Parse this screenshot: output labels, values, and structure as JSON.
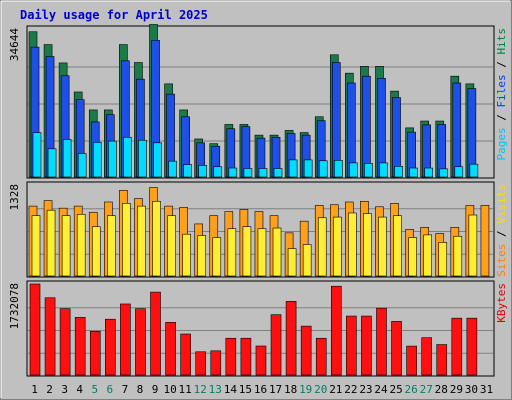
{
  "chart_data": {
    "type": "bar",
    "title": "Daily usage for April 2025",
    "categories": [
      "1",
      "2",
      "3",
      "4",
      "5",
      "6",
      "7",
      "8",
      "9",
      "10",
      "11",
      "12",
      "13",
      "14",
      "15",
      "16",
      "17",
      "18",
      "19",
      "20",
      "21",
      "22",
      "23",
      "24",
      "25",
      "26",
      "27",
      "28",
      "29",
      "30",
      "31"
    ],
    "weekend_days": [
      "5",
      "6",
      "12",
      "13",
      "19",
      "20",
      "26",
      "27"
    ],
    "panels": [
      {
        "name": "hits-files-pages",
        "ymax_label": "34644",
        "ymax": 34644,
        "side_label": [
          "Pages",
          "Files",
          "Hits"
        ],
        "side_label_colors": [
          "#00c0ff",
          "#0040ff",
          "#008040"
        ],
        "series": [
          {
            "name": "Hits",
            "color": "#1a7a4a",
            "values": [
              34000,
              31000,
              26700,
              19900,
              15700,
              15700,
              31000,
              26800,
              35700,
              21800,
              15700,
              8900,
              7800,
              12300,
              12300,
              9800,
              9800,
              10900,
              10400,
              14100,
              28600,
              24300,
              25900,
              25900,
              20100,
              11500,
              13100,
              13100,
              23600,
              21800,
              null
            ]
          },
          {
            "name": "Files",
            "color": "#1e4fe6",
            "values": [
              30400,
              28200,
              23700,
              18100,
              12900,
              14600,
              27200,
              22900,
              32000,
              19400,
              14100,
              8000,
              7200,
              11300,
              11800,
              9100,
              9300,
              10200,
              9800,
              13200,
              26800,
              22000,
              23600,
              23100,
              18600,
              10500,
              12200,
              12300,
              22000,
              20700,
              null
            ]
          },
          {
            "name": "Pages",
            "color": "#00dcff",
            "values": [
              10400,
              6600,
              8800,
              5500,
              8100,
              8400,
              9300,
              8600,
              8000,
              3700,
              2900,
              2700,
              2400,
              2100,
              2000,
              2000,
              2000,
              4000,
              4000,
              3800,
              3900,
              3300,
              3200,
              3300,
              2500,
              2100,
              2100,
              1900,
              2400,
              3000,
              null
            ]
          }
        ]
      },
      {
        "name": "visits-sites",
        "ymax_label": "1328",
        "ymax": 1328,
        "side_label": [
          "Sites",
          "Visits"
        ],
        "side_label_colors": [
          "#ff8000",
          "#ffd800"
        ],
        "series": [
          {
            "name": "Visits",
            "color": "#ff9f1a",
            "values": [
              1020,
              1100,
              990,
              1020,
              930,
              1080,
              1250,
              1130,
              1290,
              1020,
              1000,
              760,
              880,
              940,
              970,
              940,
              880,
              630,
              800,
              1030,
              1040,
              1080,
              1090,
              1010,
              1060,
              680,
              710,
              620,
              710,
              1030,
              1030
            ]
          },
          {
            "name": "Sites",
            "color": "#ffee33",
            "values": [
              880,
              960,
              880,
              900,
              720,
              880,
              1060,
              1020,
              1090,
              880,
              610,
              590,
              560,
              690,
              720,
              690,
              700,
              400,
              460,
              850,
              860,
              920,
              910,
              860,
              880,
              560,
              600,
              490,
              580,
              890,
              null
            ]
          }
        ]
      },
      {
        "name": "kbytes",
        "ymax_label": "1732078",
        "ymax": 1732078,
        "side_label": [
          "KBytes"
        ],
        "side_label_colors": [
          "#e00000"
        ],
        "series": [
          {
            "name": "KBytes",
            "color": "#ff1010",
            "values": [
              1732078,
              1470000,
              1262000,
              1097000,
              832000,
              1062000,
              1352000,
              1262000,
              1578000,
              1002000,
              780000,
              442000,
              460000,
              700000,
              700000,
              552000,
              1148000,
              1402000,
              930000,
              700000,
              1690000,
              1122000,
              1122000,
              1272000,
              1020000,
              550000,
              710000,
              580000,
              1082000,
              1082000,
              null
            ]
          }
        ]
      }
    ]
  }
}
